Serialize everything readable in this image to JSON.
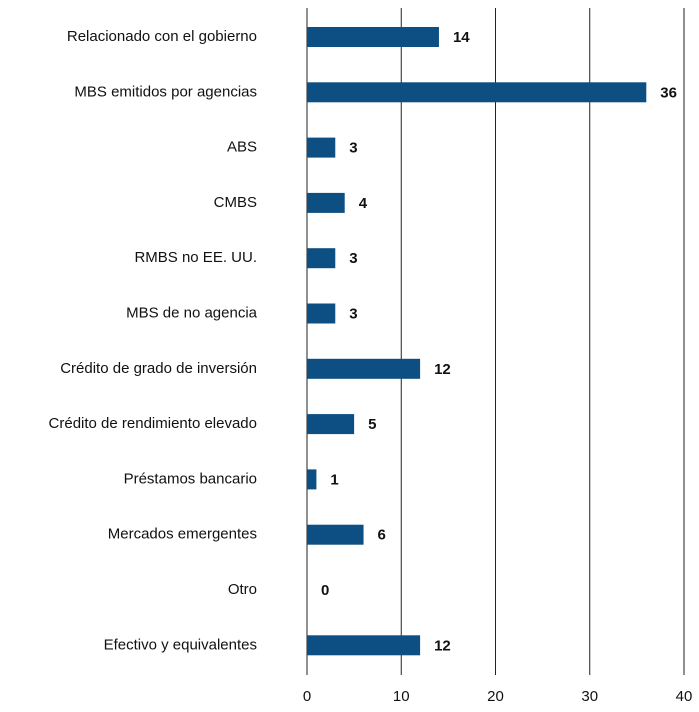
{
  "chart_data": {
    "type": "hbar",
    "categories": [
      "Relacionado con el gobierno",
      "MBS emitidos por agencias",
      "ABS",
      "CMBS",
      "RMBS no EE. UU.",
      "MBS de no agencia",
      "Crédito de grado de inversión",
      "Crédito de rendimiento elevado",
      "Préstamos bancario",
      "Mercados emergentes",
      "Otro",
      "Efectivo y equivalentes"
    ],
    "values": [
      14,
      36,
      3,
      4,
      3,
      3,
      12,
      5,
      1,
      6,
      0,
      12
    ],
    "color": "#0d4f82",
    "xlim": [
      0,
      40
    ],
    "xticks": [
      0,
      10,
      20,
      30,
      40
    ],
    "grid": true
  }
}
